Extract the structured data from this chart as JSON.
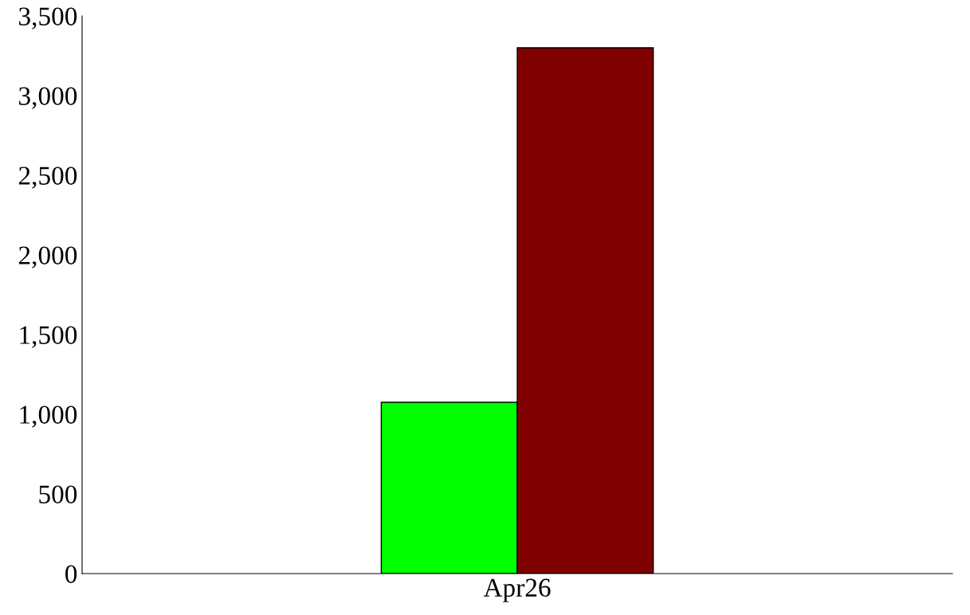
{
  "chart_data": {
    "type": "bar",
    "categories": [
      "Apr26"
    ],
    "series": [
      {
        "color": "#00ff00",
        "values": [
          1075
        ]
      },
      {
        "color": "#800000",
        "values": [
          3300
        ]
      }
    ],
    "ylim": [
      0,
      3500
    ],
    "yticks": [
      {
        "value": 0,
        "label": "0"
      },
      {
        "value": 500,
        "label": "500"
      },
      {
        "value": 1000,
        "label": "1,000"
      },
      {
        "value": 1500,
        "label": "1,500"
      },
      {
        "value": 2000,
        "label": "2,000"
      },
      {
        "value": 2500,
        "label": "2,500"
      },
      {
        "value": 3000,
        "label": "3,000"
      },
      {
        "value": 3500,
        "label": "3,500"
      }
    ],
    "grid": false,
    "legend": false
  }
}
